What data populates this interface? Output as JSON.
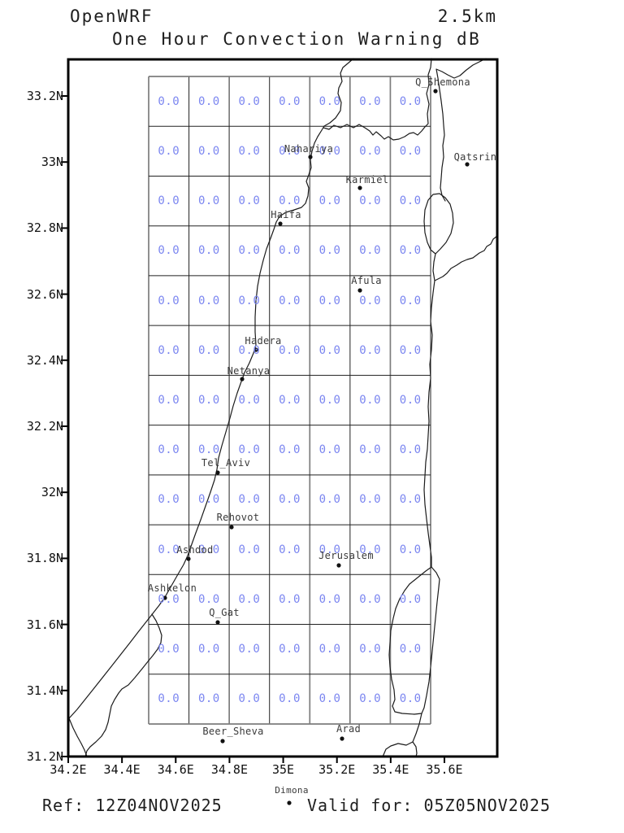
{
  "header": {
    "model": "OpenWRF",
    "resolution": "2.5km",
    "subtitle": "One Hour Convection Warning dB"
  },
  "footer": {
    "ref": "Ref: 12Z04NOV2025",
    "valid": "Valid for: 05Z05NOV2025"
  },
  "axes": {
    "lat_labels": [
      "33.2N",
      "33N",
      "32.8N",
      "32.6N",
      "32.4N",
      "32.2N",
      "32N",
      "31.8N",
      "31.6N",
      "31.4N",
      "31.2N"
    ],
    "lon_labels": [
      "34.2E",
      "34.4E",
      "34.6E",
      "34.8E",
      "35E",
      "35.2E",
      "35.4E",
      "35.6E"
    ]
  },
  "value_color": "#7b86f0",
  "grid_values": [
    [
      "0.0",
      "0.0",
      "0.0",
      "0.0",
      "0.0",
      "0.0",
      "0.0"
    ],
    [
      "0.0",
      "0.0",
      "0.0",
      "0.0",
      "0.0",
      "0.0",
      "0.0"
    ],
    [
      "0.0",
      "0.0",
      "0.0",
      "0.0",
      "0.0",
      "0.0",
      "0.0"
    ],
    [
      "0.0",
      "0.0",
      "0.0",
      "0.0",
      "0.0",
      "0.0",
      "0.0"
    ],
    [
      "0.0",
      "0.0",
      "0.0",
      "0.0",
      "0.0",
      "0.0",
      "0.0"
    ],
    [
      "0.0",
      "0.0",
      "0.0",
      "0.0",
      "0.0",
      "0.0",
      "0.0"
    ],
    [
      "0.0",
      "0.0",
      "0.0",
      "0.0",
      "0.0",
      "0.0",
      "0.0"
    ],
    [
      "0.0",
      "0.0",
      "0.0",
      "0.0",
      "0.0",
      "0.0",
      "0.0"
    ],
    [
      "0.0",
      "0.0",
      "0.0",
      "0.0",
      "0.0",
      "0.0",
      "0.0"
    ],
    [
      "0.0",
      "0.0",
      "0.0",
      "0.0",
      "0.0",
      "0.0",
      "0.0"
    ],
    [
      "0.0",
      "0.0",
      "0.0",
      "0.0",
      "0.0",
      "0.0",
      "0.0"
    ],
    [
      "0.0",
      "0.0",
      "0.0",
      "0.0",
      "0.0",
      "0.0",
      "0.0"
    ],
    [
      "0.0",
      "0.0",
      "0.0",
      "0.0",
      "0.0",
      "0.0",
      "0.0"
    ]
  ],
  "cities": [
    {
      "name": "Q_Shemona",
      "dot": [
        536,
        112
      ],
      "label": [
        545,
        94
      ]
    },
    {
      "name": "Qatsrin",
      "dot": [
        575,
        202
      ],
      "label": [
        585,
        186
      ]
    },
    {
      "name": "Nahariya",
      "dot": [
        382,
        193
      ],
      "label": [
        380,
        176
      ]
    },
    {
      "name": "Karmiel",
      "dot": [
        443,
        231
      ],
      "label": [
        452,
        214
      ]
    },
    {
      "name": "Haifa",
      "dot": [
        345,
        275
      ],
      "label": [
        352,
        257
      ]
    },
    {
      "name": "Afula",
      "dot": [
        443,
        357
      ],
      "label": [
        451,
        338
      ]
    },
    {
      "name": "Hadera",
      "dot": [
        315,
        430
      ],
      "label": [
        324,
        412
      ]
    },
    {
      "name": "Netanya",
      "dot": [
        298,
        466
      ],
      "label": [
        306,
        449
      ]
    },
    {
      "name": "Tel_Aviv",
      "dot": [
        268,
        581
      ],
      "label": [
        278,
        562
      ]
    },
    {
      "name": "Rehovot",
      "dot": [
        285,
        648
      ],
      "label": [
        293,
        629
      ]
    },
    {
      "name": "Ashdod",
      "dot": [
        232,
        687
      ],
      "label": [
        240,
        669
      ]
    },
    {
      "name": "Jerusalem",
      "dot": [
        417,
        695
      ],
      "label": [
        426,
        676
      ]
    },
    {
      "name": "Ashkelon",
      "dot": [
        203,
        735
      ],
      "label": [
        212,
        716
      ]
    },
    {
      "name": "Q_Gat",
      "dot": [
        268,
        765
      ],
      "label": [
        276,
        746
      ]
    },
    {
      "name": "Beer_Sheva",
      "dot": [
        274,
        911
      ],
      "label": [
        287,
        892
      ]
    },
    {
      "name": "Arad",
      "dot": [
        421,
        908
      ],
      "label": [
        429,
        889
      ]
    },
    {
      "name": "Dimona",
      "dot": [
        356,
        987
      ],
      "label": [
        359,
        965
      ],
      "small": true
    }
  ]
}
